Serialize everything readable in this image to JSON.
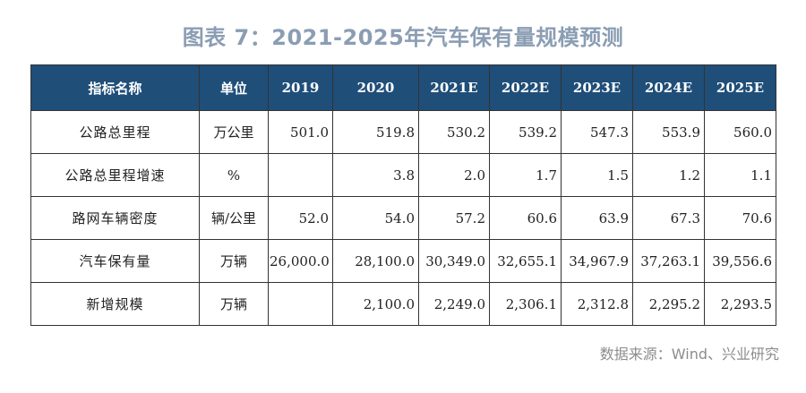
{
  "title": "图表 7：2021-2025年汽车保有量规模预测",
  "table": {
    "headers": [
      "指标名称",
      "单位",
      "2019",
      "2020",
      "2021E",
      "2022E",
      "2023E",
      "2024E",
      "2025E"
    ],
    "rows": [
      {
        "label": "公路总里程",
        "unit": "万公里",
        "values": [
          "501.0",
          "519.8",
          "530.2",
          "539.2",
          "547.3",
          "553.9",
          "560.0"
        ]
      },
      {
        "label": "公路总里程增速",
        "unit": "%",
        "values": [
          "",
          "3.8",
          "2.0",
          "1.7",
          "1.5",
          "1.2",
          "1.1"
        ]
      },
      {
        "label": "路网车辆密度",
        "unit": "辆/公里",
        "values": [
          "52.0",
          "54.0",
          "57.2",
          "60.6",
          "63.9",
          "67.3",
          "70.6"
        ]
      },
      {
        "label": "汽车保有量",
        "unit": "万辆",
        "values": [
          "26,000.0",
          "28,100.0",
          "30,349.0",
          "32,655.1",
          "34,967.9",
          "37,263.1",
          "39,556.6"
        ]
      },
      {
        "label": "新增规模",
        "unit": "万辆",
        "values": [
          "",
          "2,100.0",
          "2,249.0",
          "2,306.1",
          "2,312.8",
          "2,295.2",
          "2,293.5"
        ]
      }
    ]
  },
  "source": "数据来源：Wind、兴业研究"
}
